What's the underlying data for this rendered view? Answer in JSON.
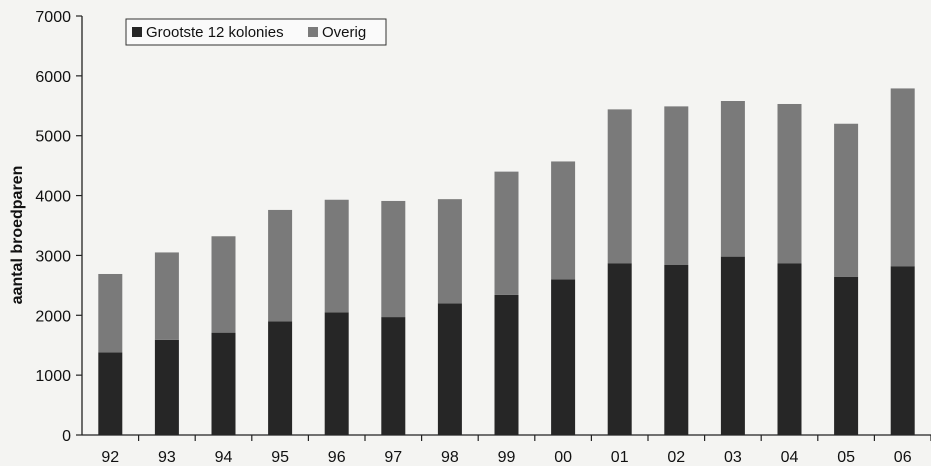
{
  "chart_data": {
    "type": "bar",
    "stacked": true,
    "categories": [
      "92",
      "93",
      "94",
      "95",
      "96",
      "97",
      "98",
      "99",
      "00",
      "01",
      "02",
      "03",
      "04",
      "05",
      "06"
    ],
    "series": [
      {
        "name": "Grootste 12 kolonies",
        "color": "#262626",
        "values": [
          1380,
          1590,
          1710,
          1900,
          2050,
          1970,
          2200,
          2340,
          2600,
          2870,
          2840,
          2980,
          2870,
          2640,
          2820
        ]
      },
      {
        "name": "Overig",
        "color": "#7a7a7a",
        "values": [
          1310,
          1460,
          1610,
          1860,
          1880,
          1940,
          1740,
          2060,
          1970,
          2570,
          2650,
          2600,
          2660,
          2560,
          2970
        ]
      }
    ],
    "title": "",
    "xlabel": "",
    "ylabel": "aantal broedparen",
    "ylim": [
      0,
      7000
    ],
    "yticks": [
      0,
      1000,
      2000,
      3000,
      4000,
      5000,
      6000,
      7000
    ],
    "grid": false,
    "legend_position": "top-left"
  }
}
